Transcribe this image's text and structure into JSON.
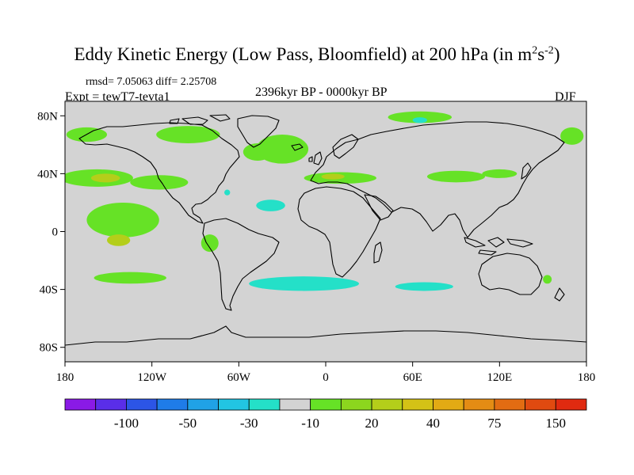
{
  "title_main": "Eddy Kinetic Energy (Low Pass, Bloomfield) at 200 hPa (in m",
  "title_sup1": "2",
  "title_mid": "s",
  "title_sup2": "-2",
  "title_end": ")",
  "stats": "rmsd= 7.05063 diff= 2.25708",
  "expt": "Expt = tewT7-tevta1",
  "period": "2396kyr BP - 0000kyr BP",
  "season": "DJF",
  "chart_data": {
    "type": "heatmap",
    "title": "Eddy Kinetic Energy (Low Pass, Bloomfield) at 200 hPa (in m2s-2)",
    "xlim": [
      -180,
      180
    ],
    "ylim": [
      -90,
      90
    ],
    "x_ticks": [
      {
        "value": -180,
        "label": "180"
      },
      {
        "value": -120,
        "label": "120W"
      },
      {
        "value": -60,
        "label": "60W"
      },
      {
        "value": 0,
        "label": "0"
      },
      {
        "value": 60,
        "label": "60E"
      },
      {
        "value": 120,
        "label": "120E"
      },
      {
        "value": 180,
        "label": "180"
      }
    ],
    "y_ticks": [
      {
        "value": 80,
        "label": "80N"
      },
      {
        "value": 40,
        "label": "40N"
      },
      {
        "value": 0,
        "label": "0"
      },
      {
        "value": -40,
        "label": "40S"
      },
      {
        "value": -80,
        "label": "80S"
      }
    ],
    "background_color": "#d3d3d3",
    "colorbar": {
      "colors": [
        "#8a1ae6",
        "#5a2ee8",
        "#2c55e6",
        "#1f7ce8",
        "#20a2e6",
        "#22c5e2",
        "#24e0c8",
        "#d3d3d3",
        "#66e226",
        "#8cd61e",
        "#b4ce1a",
        "#d4c216",
        "#e2aa14",
        "#e48c14",
        "#e26c12",
        "#e04a10",
        "#e02a10"
      ],
      "labels": [
        "-100",
        "-50",
        "-30",
        "-10",
        "20",
        "40",
        "75",
        "150"
      ]
    },
    "regions": [
      {
        "name": "north-pacific-belt",
        "lon": -158,
        "lat": 37,
        "rlon": 25,
        "rlat": 6,
        "level": 20
      },
      {
        "name": "north-pacific-core",
        "lon": -152,
        "lat": 37,
        "rlon": 10,
        "rlat": 3,
        "level": 40
      },
      {
        "name": "north-pacific-east",
        "lon": -115,
        "lat": 34,
        "rlon": 20,
        "rlat": 5,
        "level": 20
      },
      {
        "name": "alaska-northwest",
        "lon": -165,
        "lat": 67,
        "rlon": 14,
        "rlat": 5,
        "level": 20
      },
      {
        "name": "arctic-canada",
        "lon": -95,
        "lat": 67,
        "rlon": 22,
        "rlat": 6,
        "level": 20
      },
      {
        "name": "north-atlantic",
        "lon": -30,
        "lat": 57,
        "rlon": 18,
        "rlat": 10,
        "level": 20
      },
      {
        "name": "greenland-east",
        "lon": -47,
        "lat": 55,
        "rlon": 10,
        "rlat": 6,
        "level": 20
      },
      {
        "name": "mediterranean",
        "lon": 10,
        "lat": 37,
        "rlon": 25,
        "rlat": 4,
        "level": 20
      },
      {
        "name": "mediterranean-core",
        "lon": 5,
        "lat": 38,
        "rlon": 8,
        "rlat": 2,
        "level": 40
      },
      {
        "name": "asia-subtropical",
        "lon": 90,
        "lat": 38,
        "rlon": 20,
        "rlat": 4,
        "level": 20
      },
      {
        "name": "east-asia-jet",
        "lon": 120,
        "lat": 40,
        "rlon": 12,
        "rlat": 3,
        "level": 20
      },
      {
        "name": "siberia-north",
        "lon": 65,
        "lat": 79,
        "rlon": 22,
        "rlat": 4,
        "level": 20
      },
      {
        "name": "east-siberia",
        "lon": 170,
        "lat": 66,
        "rlon": 8,
        "rlat": 6,
        "level": 20
      },
      {
        "name": "tropical-east-pacific",
        "lon": -140,
        "lat": 8,
        "rlon": 25,
        "rlat": 12,
        "level": 20
      },
      {
        "name": "tropical-pacific-core",
        "lon": -143,
        "lat": -6,
        "rlon": 8,
        "rlat": 4,
        "level": 40
      },
      {
        "name": "south-pacific",
        "lon": -135,
        "lat": -32,
        "rlon": 25,
        "rlat": 4,
        "level": 20
      },
      {
        "name": "andes-west",
        "lon": -80,
        "lat": -8,
        "rlon": 6,
        "rlat": 6,
        "level": 20
      },
      {
        "name": "australia-east",
        "lon": 153,
        "lat": -33,
        "rlon": 3,
        "rlat": 3,
        "level": 20
      },
      {
        "name": "atlantic-subtropical",
        "lon": -38,
        "lat": 18,
        "rlon": 10,
        "rlat": 4,
        "level": -10
      },
      {
        "name": "caribbean",
        "lon": -68,
        "lat": 27,
        "rlon": 2,
        "rlat": 2,
        "level": -10
      },
      {
        "name": "south-atlantic",
        "lon": -15,
        "lat": -36,
        "rlon": 38,
        "rlat": 5,
        "level": -10
      },
      {
        "name": "south-indian",
        "lon": 68,
        "lat": -38,
        "rlon": 20,
        "rlat": 3,
        "level": -10
      },
      {
        "name": "arctic-kara",
        "lon": 65,
        "lat": 77,
        "rlon": 5,
        "rlat": 2,
        "level": -10
      }
    ]
  }
}
